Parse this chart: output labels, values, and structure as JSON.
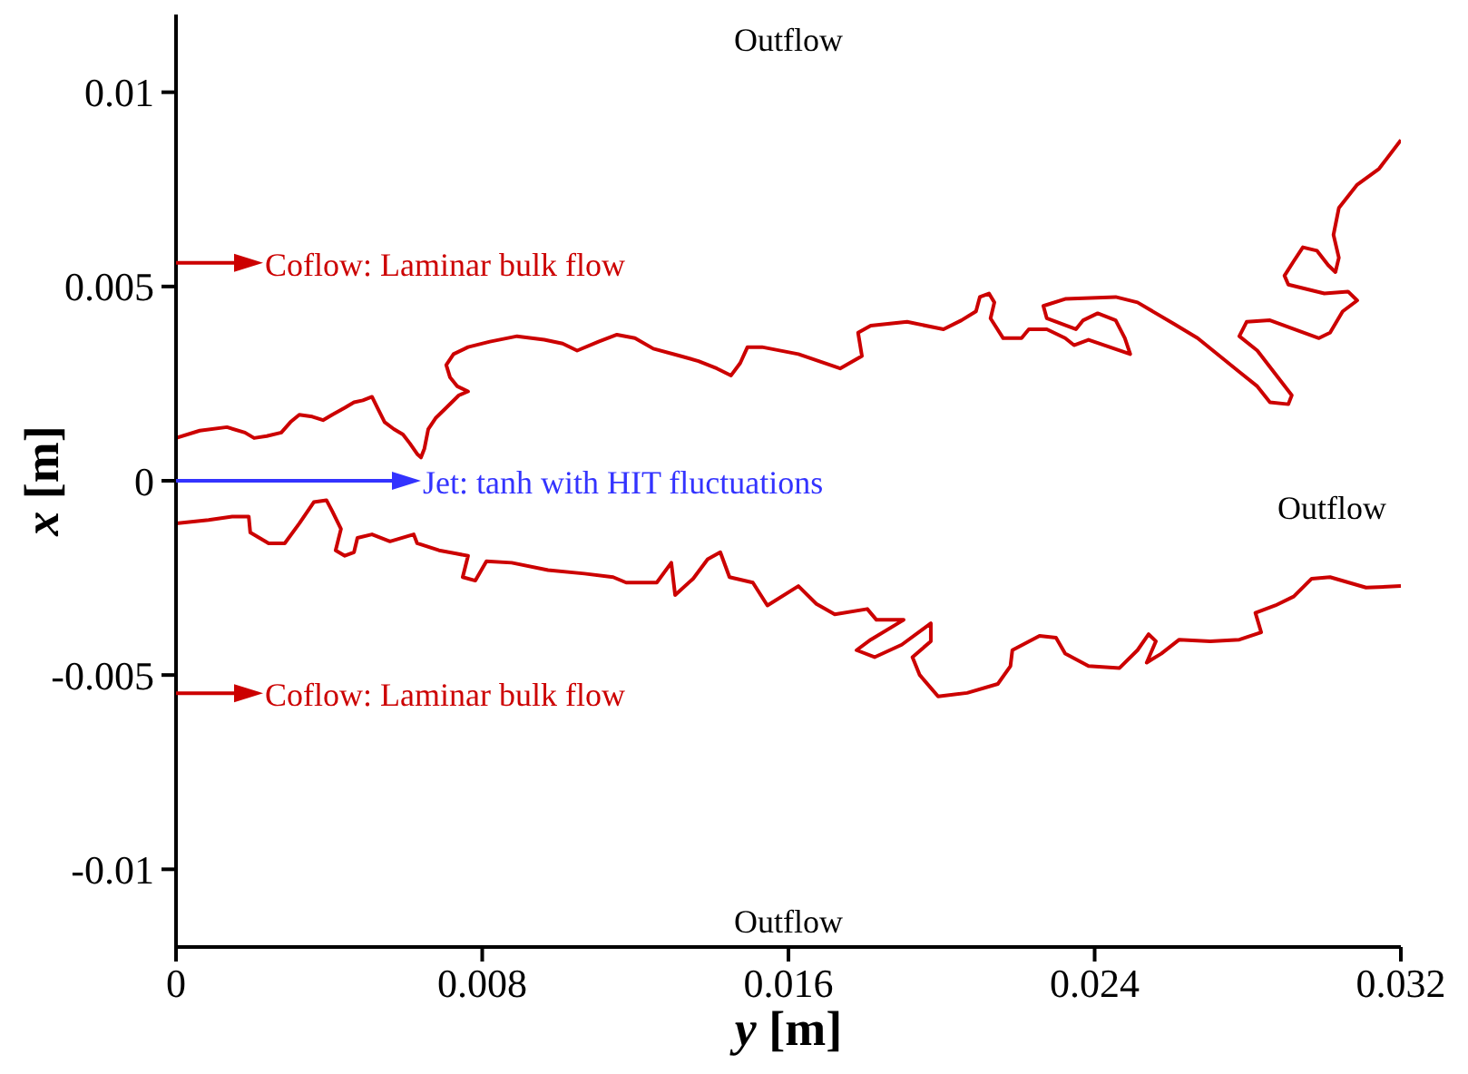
{
  "chart_data": {
    "type": "line",
    "xlabel": "y [m]",
    "ylabel": "x [m]",
    "xlim": [
      0,
      0.032
    ],
    "xticks": [
      0,
      0.008,
      0.016,
      0.024,
      0.032
    ],
    "ylim": [
      -0.012,
      0.012
    ],
    "yticks": [
      -0.01,
      -0.005,
      0,
      0.005,
      0.01
    ],
    "grid": false,
    "legend": false,
    "marker": "none",
    "line_style": "solid",
    "series": [
      {
        "color": "#cc0000",
        "x": [
          0,
          0.00062,
          0.00133,
          0.0018,
          0.00204,
          0.00237,
          0.00275,
          0.00299,
          0.00322,
          0.00356,
          0.00384,
          0.00408,
          0.00441,
          0.00465,
          0.00488,
          0.00512,
          0.00526,
          0.00545,
          0.00569,
          0.00593,
          0.00611,
          0.0063,
          0.0064,
          0.00649,
          0.00659,
          0.00678,
          0.00706,
          0.00739,
          0.00763,
          0.00735,
          0.00716,
          0.00706,
          0.00725,
          0.00763,
          0.0082,
          0.00891,
          0.00962,
          0.0101,
          0.01048,
          0.01104,
          0.01152,
          0.01199,
          0.01247,
          0.01318,
          0.01365,
          0.01413,
          0.0145,
          0.01474,
          0.01493,
          0.01531,
          0.01626,
          0.01735,
          0.01792,
          0.01782,
          0.01815,
          0.0191,
          0.02005,
          0.02052,
          0.0209,
          0.021,
          0.02124,
          0.02138,
          0.02128,
          0.02161,
          0.02209,
          0.02228,
          0.02275,
          0.02323,
          0.02346,
          0.02384,
          0.02493,
          0.02479,
          0.02455,
          0.02408,
          0.0237,
          0.02351,
          0.02275,
          0.02266,
          0.02323,
          0.02455,
          0.02512,
          0.02607,
          0.02669,
          0.02778,
          0.02825,
          0.02858,
          0.02906,
          0.02915,
          0.02872,
          0.02825,
          0.02778,
          0.02797,
          0.02858,
          0.02986,
          0.03015,
          0.03048,
          0.03086,
          0.03062,
          0.03,
          0.02906,
          0.02896,
          0.0292,
          0.02944,
          0.02981,
          0.0301,
          0.03029,
          0.03038,
          0.03024,
          0.03038,
          0.03086,
          0.03143,
          0.032
        ],
        "values": [
          0.0011,
          0.00129,
          0.00138,
          0.00124,
          0.0011,
          0.00115,
          0.00124,
          0.00151,
          0.0017,
          0.00165,
          0.00156,
          0.0017,
          0.00188,
          0.00202,
          0.00207,
          0.00216,
          0.00188,
          0.00151,
          0.00133,
          0.00119,
          0.00096,
          0.00069,
          0.0006,
          0.00083,
          0.00133,
          0.00161,
          0.00188,
          0.0022,
          0.0023,
          0.00243,
          0.00266,
          0.00298,
          0.00326,
          0.00344,
          0.00358,
          0.00372,
          0.00363,
          0.00353,
          0.00335,
          0.00358,
          0.00376,
          0.00367,
          0.0034,
          0.00321,
          0.00308,
          0.00289,
          0.00271,
          0.00303,
          0.00344,
          0.00344,
          0.00326,
          0.00289,
          0.00321,
          0.00381,
          0.00399,
          0.00409,
          0.0039,
          0.00413,
          0.00436,
          0.00473,
          0.00482,
          0.00459,
          0.00418,
          0.00367,
          0.00367,
          0.0039,
          0.0039,
          0.00367,
          0.00349,
          0.00363,
          0.00326,
          0.00367,
          0.00413,
          0.00431,
          0.00413,
          0.0039,
          0.00418,
          0.0045,
          0.00468,
          0.00473,
          0.00459,
          0.00404,
          0.00367,
          0.0028,
          0.00243,
          0.00202,
          0.00197,
          0.0022,
          0.00275,
          0.00335,
          0.00372,
          0.00409,
          0.00413,
          0.00367,
          0.00381,
          0.00436,
          0.00464,
          0.00487,
          0.00482,
          0.00505,
          0.00528,
          0.00565,
          0.00601,
          0.00592,
          0.00555,
          0.00537,
          0.00574,
          0.00633,
          0.00702,
          0.00762,
          0.00803,
          0.00877
        ]
      },
      {
        "color": "#cc0000",
        "x": [
          0,
          0.00085,
          0.00147,
          0.0019,
          0.00194,
          0.00242,
          0.00284,
          0.00322,
          0.0036,
          0.00393,
          0.00408,
          0.00431,
          0.00417,
          0.00441,
          0.00465,
          0.00474,
          0.00512,
          0.00559,
          0.00621,
          0.0063,
          0.00687,
          0.00735,
          0.00763,
          0.00749,
          0.00782,
          0.00811,
          0.00877,
          0.00972,
          0.01067,
          0.01142,
          0.01176,
          0.01256,
          0.01294,
          0.01304,
          0.01351,
          0.01389,
          0.01422,
          0.01446,
          0.01507,
          0.01545,
          0.01626,
          0.01673,
          0.01721,
          0.01806,
          0.0183,
          0.01901,
          0.01815,
          0.01778,
          0.01825,
          0.01896,
          0.01972,
          0.01972,
          0.01924,
          0.01943,
          0.01991,
          0.02067,
          0.02147,
          0.0218,
          0.02185,
          0.02256,
          0.02299,
          0.02323,
          0.02384,
          0.02465,
          0.02512,
          0.02541,
          0.0256,
          0.02536,
          0.02574,
          0.02621,
          0.02702,
          0.02778,
          0.02835,
          0.0282,
          0.02872,
          0.0292,
          0.02967,
          0.03015,
          0.03109,
          0.032
        ],
        "values": [
          -0.0011,
          -0.00101,
          -0.00092,
          -0.00092,
          -0.00133,
          -0.00161,
          -0.00161,
          -0.0011,
          -0.00055,
          -0.0005,
          -0.00078,
          -0.00124,
          -0.00179,
          -0.00193,
          -0.00184,
          -0.00147,
          -0.00138,
          -0.00156,
          -0.00138,
          -0.00161,
          -0.00179,
          -0.00188,
          -0.00193,
          -0.00248,
          -0.00257,
          -0.00207,
          -0.00211,
          -0.0023,
          -0.00239,
          -0.00248,
          -0.00262,
          -0.00262,
          -0.00211,
          -0.00294,
          -0.00252,
          -0.00202,
          -0.00184,
          -0.00248,
          -0.00262,
          -0.00321,
          -0.00271,
          -0.00317,
          -0.00344,
          -0.0033,
          -0.00358,
          -0.00358,
          -0.00409,
          -0.00436,
          -0.00454,
          -0.00422,
          -0.00367,
          -0.00413,
          -0.00454,
          -0.005,
          -0.00555,
          -0.00546,
          -0.00523,
          -0.00477,
          -0.00436,
          -0.00399,
          -0.00404,
          -0.00445,
          -0.00477,
          -0.00482,
          -0.00436,
          -0.00395,
          -0.00413,
          -0.00468,
          -0.00445,
          -0.00409,
          -0.00413,
          -0.00409,
          -0.0039,
          -0.0034,
          -0.00321,
          -0.00298,
          -0.00252,
          -0.00248,
          -0.00275,
          -0.00271
        ]
      }
    ],
    "annotations": [
      "Outflow",
      "Coflow: Laminar bulk flow",
      "Jet: tanh with HIT fluctuations",
      "Outflow",
      "Coflow: Laminar bulk flow",
      "Outflow"
    ]
  }
}
